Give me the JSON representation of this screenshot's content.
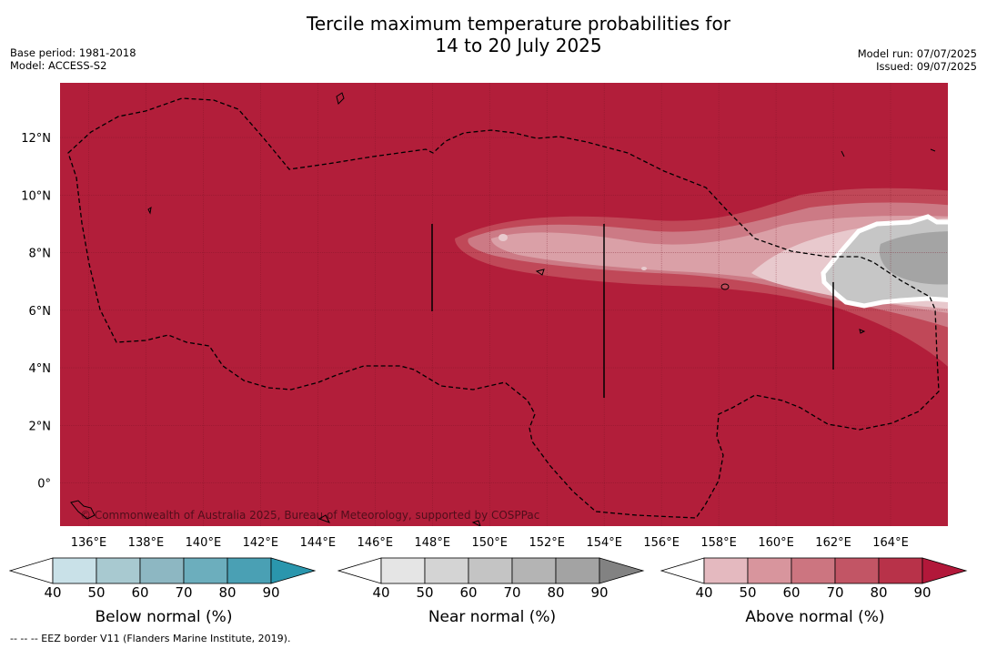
{
  "header": {
    "title_line1": "Tercile maximum temperature probabilities for",
    "title_line2": "14 to 20 July 2025",
    "base_period": "Base period: 1981-2018",
    "model": "Model: ACCESS-S2",
    "model_run": "Model run: 07/07/2025",
    "issued": "Issued: 09/07/2025"
  },
  "map": {
    "copyright": "© Commonwealth of Australia 2025, Bureau of Meteorology, supported by COSPPac",
    "lon_labels": [
      "136°E",
      "138°E",
      "140°E",
      "142°E",
      "144°E",
      "146°E",
      "148°E",
      "150°E",
      "152°E",
      "154°E",
      "156°E",
      "158°E",
      "160°E",
      "162°E",
      "164°E"
    ],
    "lat_labels": [
      "12°N",
      "10°N",
      "8°N",
      "6°N",
      "4°N",
      "2°N",
      "0°"
    ],
    "extent": {
      "lon": [
        135,
        166
      ],
      "lat": [
        -1.5,
        13.9
      ]
    },
    "background_color": "#b21e3a"
  },
  "legend": [
    {
      "label": "Below normal (%)",
      "ticks": [
        "40",
        "50",
        "60",
        "70",
        "80",
        "90"
      ],
      "colors": [
        "#ffffff",
        "#c9e1e8",
        "#a8c9d0",
        "#8db7c2",
        "#6caebd",
        "#4aa0b4",
        "#2a96ad"
      ]
    },
    {
      "label": "Near normal (%)",
      "ticks": [
        "40",
        "50",
        "60",
        "70",
        "80",
        "90"
      ],
      "colors": [
        "#ffffff",
        "#e5e5e5",
        "#d4d4d4",
        "#c4c4c4",
        "#b4b4b4",
        "#a3a3a3",
        "#828282"
      ]
    },
    {
      "label": "Above normal (%)",
      "ticks": [
        "40",
        "50",
        "60",
        "70",
        "80",
        "90"
      ],
      "colors": [
        "#ffffff",
        "#e4b9bf",
        "#d8959d",
        "#cc7580",
        "#c25565",
        "#b83249",
        "#b2183a"
      ]
    }
  ],
  "footer": {
    "eez_note": "--  --  -- EEZ border V11 (Flanders Marine Institute, 2019)."
  }
}
